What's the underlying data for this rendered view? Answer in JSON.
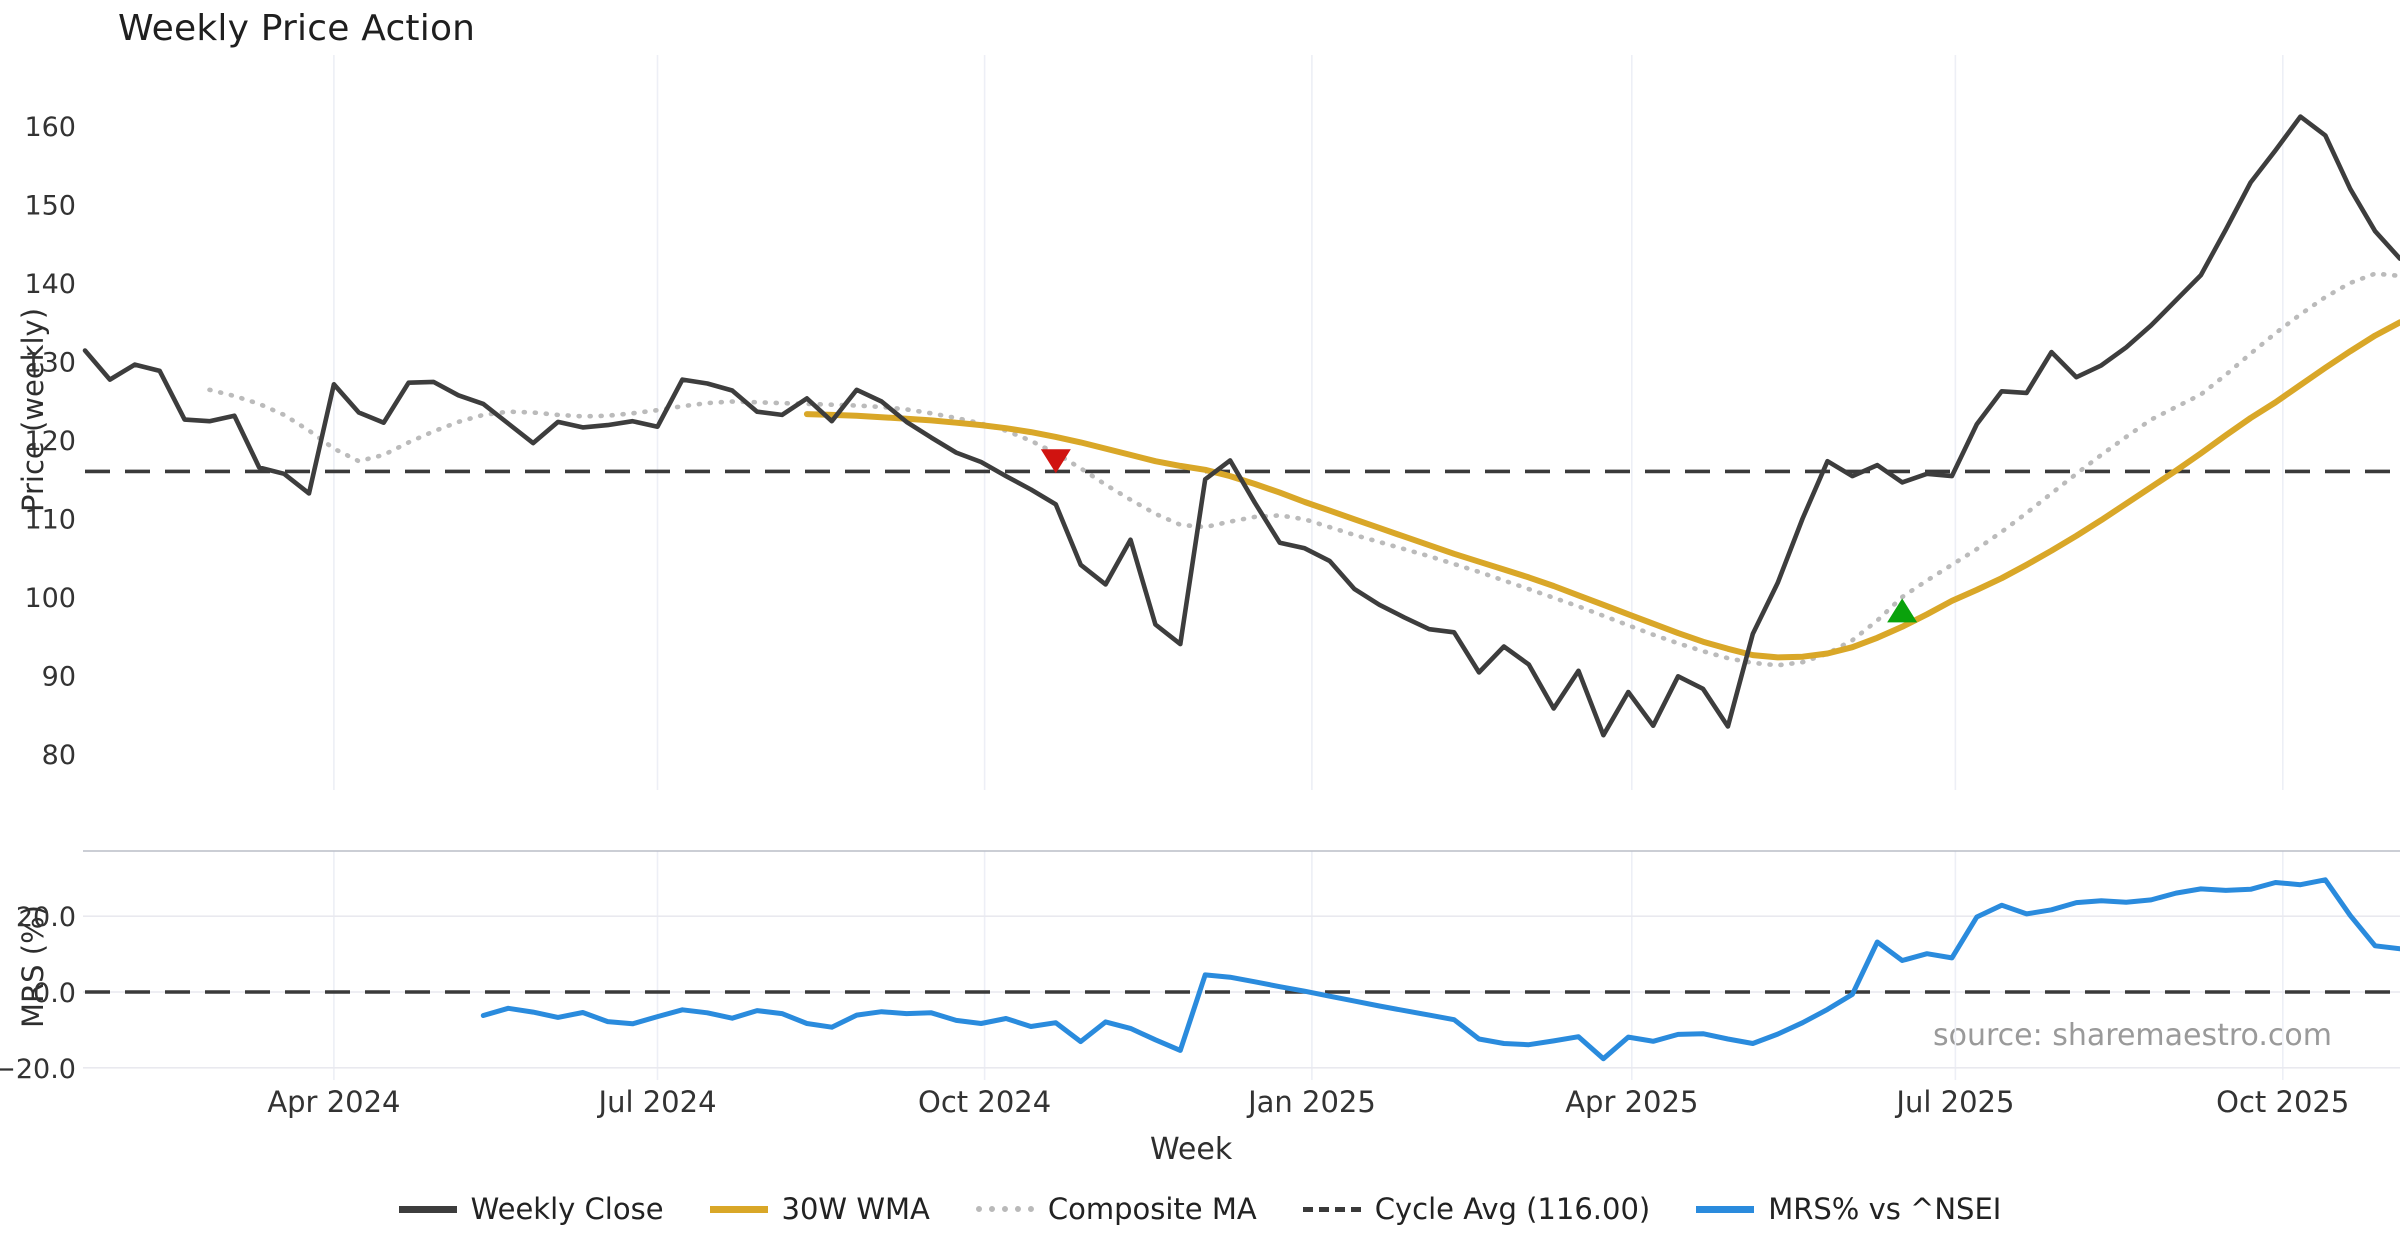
{
  "title": "Weekly Price Action",
  "source_note": "source: sharemaestro.com",
  "colors": {
    "weekly_close": "#3d3d3d",
    "wma30": "#D9A728",
    "composite_ma": "#bbbbbb",
    "cycle_avg": "#3a3a3a",
    "mrs": "#2a8bdd",
    "sell_marker": "#d01310",
    "buy_marker": "#0aa20c",
    "grid_vertical": "#edeff6",
    "grid_horizontal": "#e9e9ef",
    "panel_spine": "#babdc7",
    "tick_text": "#333333"
  },
  "legend": {
    "items": [
      {
        "label": "Weekly Close",
        "style": "solid",
        "color": "#3d3d3d"
      },
      {
        "label": "30W WMA",
        "style": "solid",
        "color": "#D9A728"
      },
      {
        "label": "Composite MA",
        "style": "dotted",
        "color": "#b9b9b9"
      },
      {
        "label": "Cycle Avg (116.00)",
        "style": "dashed",
        "color": "#3a3a3a"
      },
      {
        "label": "MRS% vs ^NSEI",
        "style": "solid",
        "color": "#2a8bdd"
      }
    ]
  },
  "axes": {
    "main": {
      "ylabel": "Price (weekly)",
      "ticks": [
        160,
        150,
        140,
        130,
        120,
        110,
        100,
        90,
        80
      ]
    },
    "lower": {
      "ylabel": "MRS (%)",
      "tick_labels": [
        "20.0",
        "0.0",
        "−20.0"
      ],
      "tick_values": [
        20,
        0,
        -20
      ]
    },
    "x": {
      "label": "Week",
      "months": [
        {
          "label": "Apr 2024",
          "week_index": 10.0
        },
        {
          "label": "Jul 2024",
          "week_index": 23.0
        },
        {
          "label": "Oct 2024",
          "week_index": 36.14
        },
        {
          "label": "Jan 2025",
          "week_index": 49.29
        },
        {
          "label": "Apr 2025",
          "week_index": 62.14
        },
        {
          "label": "Jul 2025",
          "week_index": 75.14
        },
        {
          "label": "Oct 2025",
          "week_index": 88.29
        }
      ]
    }
  },
  "chart_data": [
    {
      "type": "line",
      "panel": "main",
      "title": "Weekly Price Action",
      "xlabel": "Week",
      "ylabel": "Price (weekly)",
      "x_start_date": "2024-01-22",
      "x_freq_days": 7,
      "n_weeks": 94,
      "ylim": [
        76,
        166
      ],
      "cycle_avg": 116.0,
      "series": [
        {
          "name": "Weekly Close",
          "start_index": 0,
          "values": [
            131.4,
            127.7,
            129.6,
            128.8,
            122.6,
            122.4,
            123.1,
            116.5,
            115.7,
            113.2,
            127.1,
            123.5,
            122.2,
            127.3,
            127.4,
            125.7,
            124.6,
            122.1,
            119.6,
            122.3,
            121.6,
            121.9,
            122.4,
            121.7,
            127.7,
            127.2,
            126.3,
            123.6,
            123.2,
            125.3,
            122.4,
            126.4,
            124.9,
            122.3,
            120.3,
            118.4,
            117.2,
            115.4,
            113.7,
            111.8,
            104.1,
            101.6,
            107.3,
            96.5,
            94.0,
            115.0,
            117.4,
            112.0,
            106.9,
            106.2,
            104.6,
            101.0,
            99.0,
            97.4,
            95.9,
            95.5,
            90.4,
            93.7,
            91.4,
            85.8,
            90.6,
            82.4,
            87.9,
            83.6,
            89.9,
            88.3,
            83.5,
            95.3,
            101.8,
            110.0,
            117.3,
            115.4,
            116.8,
            114.6,
            115.7,
            115.4,
            122.0,
            126.2,
            126.0,
            131.2,
            128.0,
            129.5,
            131.8,
            134.6,
            137.8,
            141.0,
            146.8,
            152.8,
            156.9,
            161.2,
            158.8,
            152.0,
            146.6,
            143.1
          ]
        },
        {
          "name": "30W WMA",
          "start_index": 29,
          "values": [
            123.3,
            123.2,
            123.1,
            122.9,
            122.7,
            122.5,
            122.2,
            121.9,
            121.5,
            121.0,
            120.4,
            119.7,
            118.9,
            118.1,
            117.3,
            116.7,
            116.2,
            115.4,
            114.4,
            113.3,
            112.1,
            111.0,
            109.9,
            108.8,
            107.7,
            106.6,
            105.5,
            104.5,
            103.5,
            102.5,
            101.4,
            100.2,
            99.0,
            97.8,
            96.6,
            95.4,
            94.3,
            93.4,
            92.6,
            92.3,
            92.4,
            92.8,
            93.6,
            94.8,
            96.2,
            97.8,
            99.5,
            100.9,
            102.4,
            104.1,
            105.9,
            107.8,
            109.8,
            111.9,
            114.0,
            116.1,
            118.3,
            120.6,
            122.8,
            124.8,
            127.0,
            129.2,
            131.3,
            133.3,
            135.0
          ]
        },
        {
          "name": "Composite MA",
          "start_index": 5,
          "values": [
            126.4,
            125.6,
            124.6,
            123.2,
            121.2,
            118.9,
            117.3,
            118.1,
            119.7,
            121.1,
            122.3,
            123.2,
            123.6,
            123.5,
            123.2,
            123.0,
            123.1,
            123.4,
            123.8,
            124.3,
            124.7,
            124.9,
            124.8,
            124.7,
            124.6,
            124.5,
            124.4,
            124.2,
            123.9,
            123.4,
            122.8,
            122.1,
            121.2,
            119.9,
            118.3,
            116.4,
            114.3,
            112.4,
            110.6,
            109.2,
            108.9,
            109.6,
            110.2,
            110.4,
            109.9,
            108.9,
            107.9,
            107.0,
            106.1,
            105.2,
            104.2,
            103.2,
            102.1,
            101.0,
            99.9,
            98.8,
            97.6,
            96.4,
            95.2,
            94.1,
            93.1,
            92.2,
            91.6,
            91.3,
            91.7,
            92.8,
            94.5,
            97.0,
            100.0,
            102.1,
            104.1,
            106.1,
            108.3,
            110.7,
            113.2,
            115.7,
            118.1,
            120.4,
            122.6,
            124.2,
            125.8,
            128.3,
            131.0,
            133.6,
            136.0,
            138.2,
            140.0,
            141.2,
            140.9
          ]
        }
      ],
      "signals": [
        {
          "type": "sell",
          "week_index": 39,
          "price": 117.3
        },
        {
          "type": "buy",
          "week_index": 73,
          "price": 98.3
        }
      ]
    },
    {
      "type": "line",
      "panel": "lower",
      "ylabel": "MRS (%)",
      "zero_line": 0.0,
      "ylim": [
        -24,
        34
      ],
      "series": [
        {
          "name": "MRS% vs ^NSEI",
          "start_index": 16,
          "values": [
            -6.2,
            -4.3,
            -5.3,
            -6.7,
            -5.4,
            -7.8,
            -8.4,
            -6.5,
            -4.7,
            -5.5,
            -6.9,
            -4.9,
            -5.7,
            -8.3,
            -9.3,
            -6.1,
            -5.2,
            -5.7,
            -5.5,
            -7.5,
            -8.3,
            -7.0,
            -9.1,
            -8.1,
            -13.1,
            -7.9,
            -9.6,
            -12.6,
            -15.4,
            4.5,
            3.9,
            2.7,
            1.4,
            0.2,
            -1.1,
            -2.4,
            -3.7,
            -4.9,
            -6.1,
            -7.3,
            -12.4,
            -13.6,
            -13.9,
            -12.9,
            -11.8,
            -17.6,
            -11.9,
            -13.0,
            -11.2,
            -11.0,
            -12.4,
            -13.6,
            -11.1,
            -8.1,
            -4.6,
            -0.6,
            13.2,
            8.3,
            10.1,
            9.0,
            19.8,
            22.9,
            20.6,
            21.7,
            23.6,
            24.1,
            23.7,
            24.3,
            26.1,
            27.2,
            26.8,
            27.1,
            28.9,
            28.3,
            29.6,
            20.2,
            12.2,
            11.4
          ]
        }
      ]
    }
  ]
}
